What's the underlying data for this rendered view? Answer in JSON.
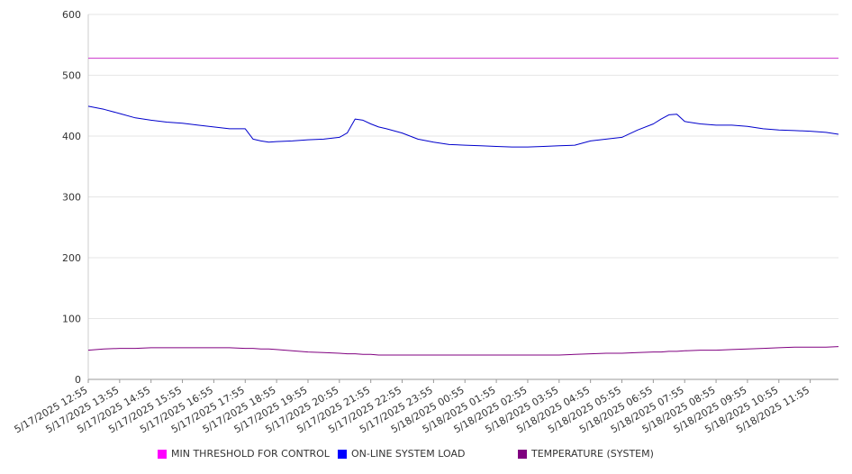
{
  "chart_data": {
    "type": "line",
    "title": "",
    "xlabel": "",
    "ylabel": "",
    "ylim": [
      0,
      600
    ],
    "yticks": [
      0,
      100,
      200,
      300,
      400,
      500,
      600
    ],
    "grid": true,
    "legend_position": "bottom",
    "xticks": [
      "5/17/2025 12:55",
      "5/17/2025 13:55",
      "5/17/2025 14:55",
      "5/17/2025 15:55",
      "5/17/2025 16:55",
      "5/17/2025 17:55",
      "5/17/2025 18:55",
      "5/17/2025 19:55",
      "5/17/2025 20:55",
      "5/17/2025 21:55",
      "5/17/2025 22:55",
      "5/17/2025 23:55",
      "5/18/2025 00:55",
      "5/18/2025 01:55",
      "5/18/2025 02:55",
      "5/18/2025 03:55",
      "5/18/2025 04:55",
      "5/18/2025 05:55",
      "5/18/2025 06:55",
      "5/18/2025 07:55",
      "5/18/2025 08:55",
      "5/18/2025 09:55",
      "5/18/2025 10:55",
      "5/18/2025 11:55"
    ],
    "x_hours": [
      0,
      0.5,
      1,
      1.5,
      2,
      2.5,
      3,
      3.5,
      4,
      4.5,
      5,
      5.25,
      5.5,
      5.75,
      6,
      6.5,
      7,
      7.5,
      8,
      8.25,
      8.5,
      8.75,
      9,
      9.25,
      9.5,
      10,
      10.5,
      11,
      11.5,
      12,
      12.5,
      13,
      13.5,
      14,
      14.5,
      15,
      15.5,
      16,
      16.5,
      17,
      17.5,
      18,
      18.25,
      18.5,
      18.75,
      19,
      19.5,
      20,
      20.5,
      21,
      21.5,
      22,
      22.5,
      23,
      23.5,
      23.9
    ],
    "series": [
      {
        "name": "MIN THRESHOLD FOR CONTROL",
        "color": "#cc33cc",
        "values": [
          528,
          528,
          528,
          528,
          528,
          528,
          528,
          528,
          528,
          528,
          528,
          528,
          528,
          528,
          528,
          528,
          528,
          528,
          528,
          528,
          528,
          528,
          528,
          528,
          528,
          528,
          528,
          528,
          528,
          528,
          528,
          528,
          528,
          528,
          528,
          528,
          528,
          528,
          528,
          528,
          528,
          528,
          528,
          528,
          528,
          528,
          528,
          528,
          528,
          528,
          528,
          528,
          528,
          528,
          528,
          528
        ]
      },
      {
        "name": "ON-LINE SYSTEM LOAD",
        "color": "#0000cc",
        "values": [
          449,
          444,
          437,
          430,
          426,
          423,
          421,
          418,
          415,
          412,
          412,
          395,
          392,
          390,
          391,
          392,
          394,
          395,
          398,
          405,
          428,
          426,
          420,
          415,
          412,
          405,
          395,
          390,
          386,
          385,
          384,
          383,
          382,
          382,
          383,
          384,
          385,
          392,
          395,
          398,
          410,
          420,
          428,
          435,
          436,
          424,
          420,
          418,
          418,
          416,
          412,
          410,
          409,
          408,
          406,
          403
        ]
      },
      {
        "name": "TEMPERATURE (SYSTEM)",
        "color": "#800080",
        "values": [
          48,
          50,
          51,
          51,
          52,
          52,
          52,
          52,
          52,
          52,
          51,
          51,
          50,
          50,
          49,
          47,
          45,
          44,
          43,
          42,
          42,
          41,
          41,
          40,
          40,
          40,
          40,
          40,
          40,
          40,
          40,
          40,
          40,
          40,
          40,
          40,
          41,
          42,
          43,
          43,
          44,
          45,
          45,
          46,
          46,
          47,
          48,
          48,
          49,
          50,
          51,
          52,
          53,
          53,
          53,
          54
        ]
      }
    ]
  }
}
